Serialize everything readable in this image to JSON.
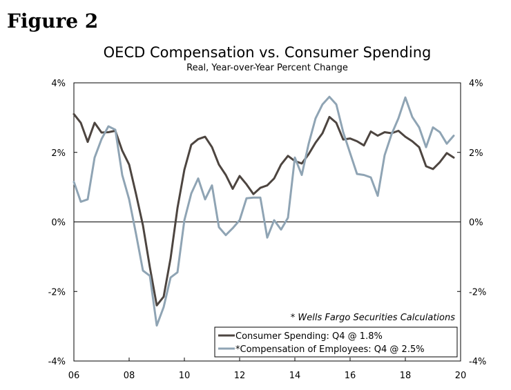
{
  "figure_label": "Figure 2",
  "chart_data": {
    "type": "line",
    "title": "OECD Compensation vs. Consumer Spending",
    "subtitle": "Real, Year-over-Year Percent Change",
    "xlabel": "",
    "ylabel": "",
    "x_ticks": [
      "06",
      "08",
      "10",
      "12",
      "14",
      "16",
      "18",
      "20"
    ],
    "x_tick_years": [
      2006,
      2008,
      2010,
      2012,
      2014,
      2016,
      2018,
      2020
    ],
    "y_ticks_left": [
      "4%",
      "2%",
      "0%",
      "-2%",
      "-4%"
    ],
    "y_ticks_right": [
      "4%",
      "2%",
      "0%",
      "-2%",
      "-4%"
    ],
    "y_tick_values": [
      4,
      2,
      0,
      -2,
      -4
    ],
    "xlim": [
      2006,
      2020
    ],
    "ylim": [
      -4,
      4
    ],
    "annotation": "* Wells Fargo Securities Calculations",
    "legend_position": "bottom-right",
    "series": [
      {
        "name": "Consumer Spending: Q4 @ 1.8%",
        "color": "#4d4540",
        "x": [
          2006.0,
          2006.25,
          2006.5,
          2006.75,
          2007.0,
          2007.25,
          2007.5,
          2007.75,
          2008.0,
          2008.25,
          2008.5,
          2008.75,
          2009.0,
          2009.25,
          2009.5,
          2009.75,
          2010.0,
          2010.25,
          2010.5,
          2010.75,
          2011.0,
          2011.25,
          2011.5,
          2011.75,
          2012.0,
          2012.25,
          2012.5,
          2012.75,
          2013.0,
          2013.25,
          2013.5,
          2013.75,
          2014.0,
          2014.25,
          2014.5,
          2014.75,
          2015.0,
          2015.25,
          2015.5,
          2015.75,
          2016.0,
          2016.25,
          2016.5,
          2016.75,
          2017.0,
          2017.25,
          2017.5,
          2017.75,
          2018.0,
          2018.25,
          2018.5,
          2018.75,
          2019.0,
          2019.25,
          2019.5,
          2019.75
        ],
        "values": [
          3.1,
          2.85,
          2.3,
          2.85,
          2.57,
          2.58,
          2.62,
          2.05,
          1.65,
          0.8,
          -0.1,
          -1.3,
          -2.4,
          -2.15,
          -1.05,
          0.4,
          1.5,
          2.22,
          2.38,
          2.45,
          2.15,
          1.65,
          1.35,
          0.95,
          1.32,
          1.08,
          0.8,
          0.98,
          1.05,
          1.25,
          1.65,
          1.9,
          1.75,
          1.68,
          1.95,
          2.28,
          2.55,
          3.02,
          2.85,
          2.37,
          2.4,
          2.32,
          2.2,
          2.6,
          2.48,
          2.58,
          2.55,
          2.62,
          2.45,
          2.32,
          2.15,
          1.6,
          1.52,
          1.72,
          1.98,
          1.85
        ]
      },
      {
        "name": "*Compensation of Employees: Q4 @ 2.5%",
        "color": "#8fa4b4",
        "x": [
          2006.0,
          2006.25,
          2006.5,
          2006.75,
          2007.0,
          2007.25,
          2007.5,
          2007.75,
          2008.0,
          2008.25,
          2008.5,
          2008.75,
          2009.0,
          2009.25,
          2009.5,
          2009.75,
          2010.0,
          2010.25,
          2010.5,
          2010.75,
          2011.0,
          2011.25,
          2011.5,
          2011.75,
          2012.0,
          2012.25,
          2012.5,
          2012.75,
          2013.0,
          2013.25,
          2013.5,
          2013.75,
          2014.0,
          2014.25,
          2014.5,
          2014.75,
          2015.0,
          2015.25,
          2015.5,
          2015.75,
          2016.0,
          2016.25,
          2016.5,
          2016.75,
          2017.0,
          2017.25,
          2017.5,
          2017.75,
          2018.0,
          2018.25,
          2018.5,
          2018.75,
          2019.0,
          2019.25,
          2019.5,
          2019.75
        ],
        "values": [
          1.15,
          0.58,
          0.65,
          1.85,
          2.38,
          2.75,
          2.65,
          1.35,
          0.65,
          -0.35,
          -1.4,
          -1.55,
          -2.98,
          -2.45,
          -1.6,
          -1.45,
          0.05,
          0.82,
          1.25,
          0.65,
          1.05,
          -0.15,
          -0.38,
          -0.18,
          0.05,
          0.68,
          0.7,
          0.7,
          -0.45,
          0.05,
          -0.22,
          0.12,
          1.85,
          1.35,
          2.25,
          2.98,
          3.38,
          3.6,
          3.38,
          2.58,
          1.98,
          1.38,
          1.35,
          1.28,
          0.75,
          1.92,
          2.52,
          2.98,
          3.58,
          3.02,
          2.72,
          2.15,
          2.72,
          2.58,
          2.25,
          2.48
        ]
      }
    ]
  }
}
